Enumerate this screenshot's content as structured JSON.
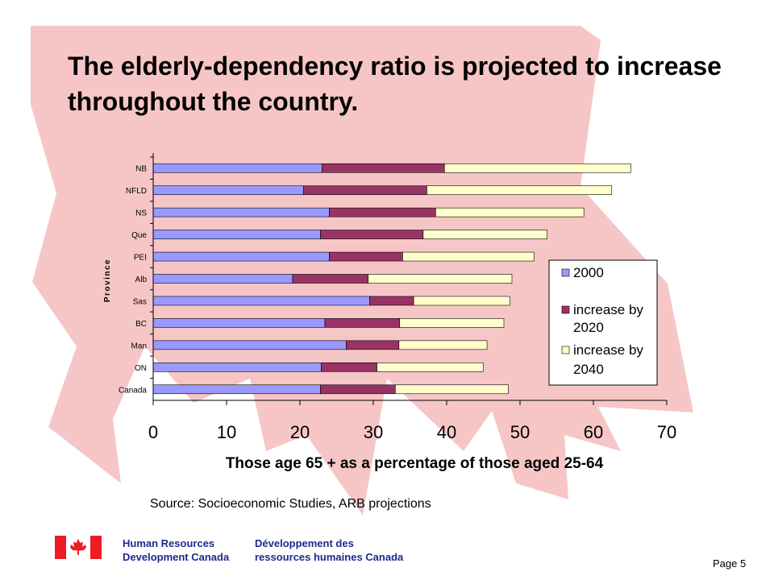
{
  "slide": {
    "title": "The elderly-dependency ratio is  projected to increase throughout the country.",
    "source": "Source: Socioeconomic Studies, ARB projections",
    "page": "Page 5",
    "footer_logo": {
      "text_en_1": "Human Resources",
      "text_en_2": "Development Canada",
      "text_fr_1": "Développement des",
      "text_fr_2": "ressources humaines Canada",
      "flag_icon": "canada-flag-icon",
      "flag_color": "#ed1c24"
    },
    "background_color": "#f6c6c6"
  },
  "chart_data": {
    "type": "bar",
    "orientation": "horizontal",
    "stacked": true,
    "categories": [
      "NB",
      "NFLD",
      "NS",
      "Que",
      "PEI",
      "Alb",
      "Sas",
      "BC",
      "Man",
      "ON",
      "Canada"
    ],
    "series": [
      {
        "name": "2000",
        "color": "#9999ff",
        "values": [
          23,
          20.5,
          24,
          22.8,
          24,
          19,
          29.5,
          23.4,
          26.3,
          22.9,
          22.8
        ]
      },
      {
        "name": "increase by 2020",
        "color": "#993366",
        "values": [
          16.7,
          16.8,
          14.5,
          14,
          10,
          10.3,
          6,
          10.2,
          7.2,
          7.6,
          10.2
        ]
      },
      {
        "name": "increase by 2040",
        "color": "#ffffcc",
        "values": [
          25.4,
          25.2,
          20.2,
          16.9,
          17.9,
          19.6,
          13.1,
          14.2,
          12,
          14.5,
          15.4
        ]
      }
    ],
    "xlabel": "Those age 65 + as a percentage of those aged 25-64",
    "ylabel": "Province",
    "xlim": [
      0,
      70
    ],
    "xticks": [
      "0",
      "10",
      "20",
      "30",
      "40",
      "50",
      "60",
      "70"
    ],
    "grid": false,
    "legend_position": "right"
  }
}
